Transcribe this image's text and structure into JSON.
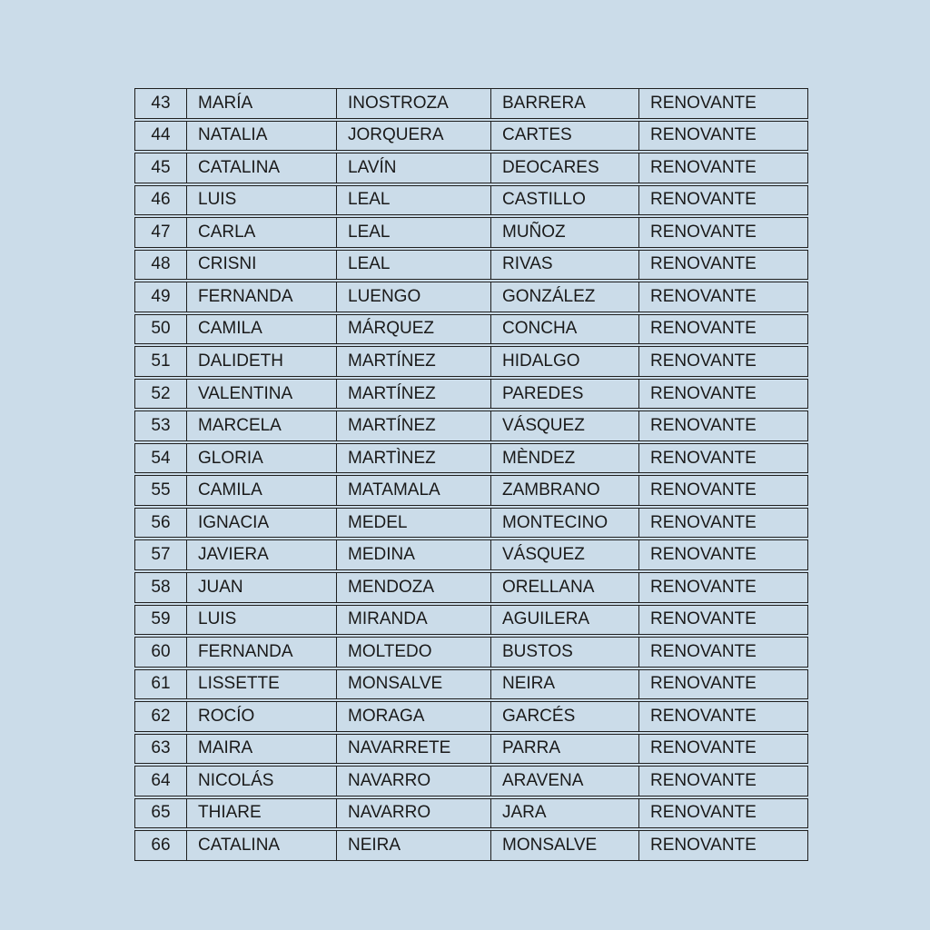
{
  "page": {
    "background_color": "#cbdce9",
    "text_color": "#1a1a1a",
    "border_color": "#1f1f1f"
  },
  "table": {
    "cell_names": [
      "row-number-cell",
      "first-name-cell",
      "paternal-surname-cell",
      "maternal-surname-cell",
      "status-cell"
    ],
    "rows": [
      [
        "43",
        "MARÍA",
        "INOSTROZA",
        "BARRERA",
        "RENOVANTE"
      ],
      [
        "44",
        "NATALIA",
        "JORQUERA",
        "CARTES",
        "RENOVANTE"
      ],
      [
        "45",
        "CATALINA",
        "LAVÍN",
        "DEOCARES",
        "RENOVANTE"
      ],
      [
        "46",
        "LUIS",
        "LEAL",
        "CASTILLO",
        "RENOVANTE"
      ],
      [
        "47",
        "CARLA",
        "LEAL",
        "MUÑOZ",
        "RENOVANTE"
      ],
      [
        "48",
        "CRISNI",
        "LEAL",
        "RIVAS",
        "RENOVANTE"
      ],
      [
        "49",
        "FERNANDA",
        "LUENGO",
        "GONZÁLEZ",
        "RENOVANTE"
      ],
      [
        "50",
        "CAMILA",
        "MÁRQUEZ",
        "CONCHA",
        "RENOVANTE"
      ],
      [
        "51",
        "DALIDETH",
        "MARTÍNEZ",
        "HIDALGO",
        "RENOVANTE"
      ],
      [
        "52",
        "VALENTINA",
        "MARTÍNEZ",
        "PAREDES",
        "RENOVANTE"
      ],
      [
        "53",
        "MARCELA",
        "MARTÍNEZ",
        "VÁSQUEZ",
        "RENOVANTE"
      ],
      [
        "54",
        "GLORIA",
        "MARTÌNEZ",
        "MÈNDEZ",
        "RENOVANTE"
      ],
      [
        "55",
        "CAMILA",
        "MATAMALA",
        "ZAMBRANO",
        "RENOVANTE"
      ],
      [
        "56",
        "IGNACIA",
        "MEDEL",
        "MONTECINO",
        "RENOVANTE"
      ],
      [
        "57",
        "JAVIERA",
        "MEDINA",
        "VÁSQUEZ",
        "RENOVANTE"
      ],
      [
        "58",
        "JUAN",
        "MENDOZA",
        "ORELLANA",
        "RENOVANTE"
      ],
      [
        "59",
        "LUIS",
        "MIRANDA",
        "AGUILERA",
        "RENOVANTE"
      ],
      [
        "60",
        "FERNANDA",
        "MOLTEDO",
        "BUSTOS",
        "RENOVANTE"
      ],
      [
        "61",
        "LISSETTE",
        "MONSALVE",
        "NEIRA",
        "RENOVANTE"
      ],
      [
        "62",
        "ROCÍO",
        "MORAGA",
        "GARCÉS",
        "RENOVANTE"
      ],
      [
        "63",
        "MAIRA",
        "NAVARRETE",
        "PARRA",
        "RENOVANTE"
      ],
      [
        "64",
        "NICOLÁS",
        "NAVARRO",
        "ARAVENA",
        "RENOVANTE"
      ],
      [
        "65",
        "THIARE",
        "NAVARRO",
        "JARA",
        "RENOVANTE"
      ],
      [
        "66",
        "CATALINA",
        "NEIRA",
        "MONSALVE",
        "RENOVANTE"
      ]
    ]
  }
}
